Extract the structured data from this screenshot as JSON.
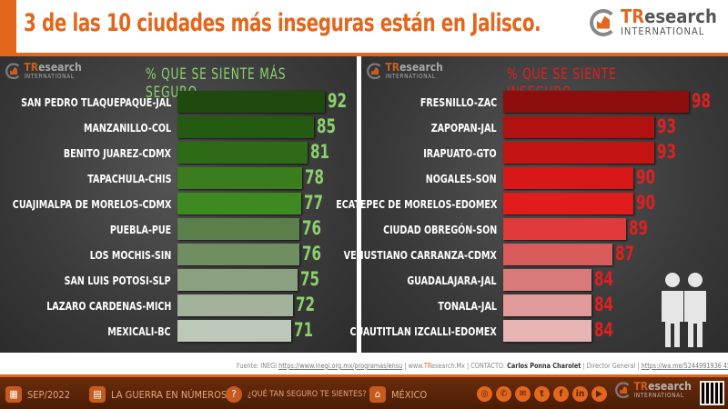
{
  "header": {
    "title": "3 de las 10 ciudades más inseguras están en Jalisco.",
    "logo_main": "TResearch",
    "logo_sub": "INTERNATIONAL"
  },
  "colors": {
    "accent": "#e2661b",
    "safe_title": "#8bd16b",
    "unsafe_title": "#e02020"
  },
  "chart_data": [
    {
      "type": "bar",
      "orientation": "horizontal",
      "title": "% QUE SE SIENTE MÁS SEGURO",
      "categories": [
        "SAN PEDRO TLAQUEPAQUE-JAL",
        "MANZANILLO-COL",
        "BENITO JUAREZ-CDMX",
        "TAPACHULA-CHIS",
        "CUAJIMALPA DE MORELOS-CDMX",
        "PUEBLA-PUE",
        "LOS MOCHIS-SIN",
        "SAN LUIS POTOSI-SLP",
        "LAZARO CARDENAS-MICH",
        "MEXICALI-BC"
      ],
      "values": [
        92,
        85,
        81,
        78,
        77,
        76,
        76,
        75,
        72,
        71
      ],
      "colors": [
        "#1e4a0e",
        "#245a12",
        "#2d6b17",
        "#3a7c1e",
        "#3f8a20",
        "#5a7f4a",
        "#6f8f62",
        "#8aa07f",
        "#a3b39b",
        "#bcc8b8"
      ],
      "value_color": "#8bd16b"
    },
    {
      "type": "bar",
      "orientation": "horizontal",
      "title": "% QUE SE SIENTE INSEGURO",
      "categories": [
        "FRESNILLO-ZAC",
        "ZAPOPAN-JAL",
        "IRAPUATO-GTO",
        "NOGALES-SON",
        "ECATEPEC DE MORELOS-EDOMEX",
        "CIUDAD OBREGÓN-SON",
        "VENUSTIANO CARRANZA-CDMX",
        "GUADALAJARA-JAL",
        "TONALA-JAL",
        "CUAUTITLAN IZCALLI-EDOMEX"
      ],
      "values": [
        98,
        93,
        93,
        90,
        90,
        89,
        87,
        84,
        84,
        84
      ],
      "colors": [
        "#8e0e0e",
        "#b01212",
        "#c41414",
        "#d81818",
        "#e01c1c",
        "#e03a3a",
        "#d85c5c",
        "#d87a7a",
        "#e09a9a",
        "#e8b5b5"
      ],
      "value_color": "#e02020"
    }
  ],
  "source": {
    "label": "Fuente:",
    "org": "INEGI",
    "url": "https://www.inegi.org.mx/programas/ensu",
    "site_pre": "| www.",
    "site_hl": "TR",
    "site_post": "esearch.Mx | CONTACTO:",
    "contact": "Carlos Ponna Charolet",
    "role": "| Director General |",
    "wa": "https://wa.me/5244991936 45"
  },
  "footer": {
    "date": "SEP/2022",
    "series": "LA GUERRA EN NÚMEROS",
    "question": "¿QUÉ TAN SEGURO TE SIENTES?",
    "country": "MÉXICO"
  }
}
